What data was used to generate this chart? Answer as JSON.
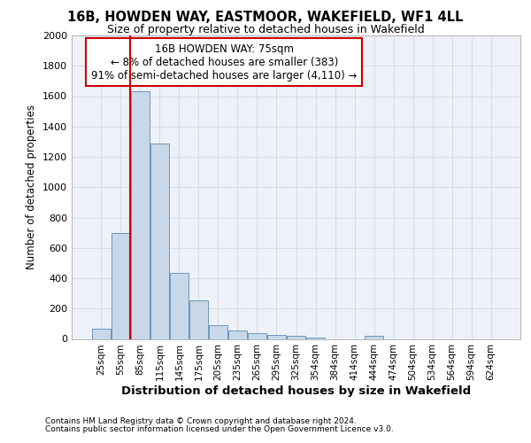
{
  "title_line1": "16B, HOWDEN WAY, EASTMOOR, WAKEFIELD, WF1 4LL",
  "title_line2": "Size of property relative to detached houses in Wakefield",
  "xlabel": "Distribution of detached houses by size in Wakefield",
  "ylabel": "Number of detached properties",
  "footer_line1": "Contains HM Land Registry data © Crown copyright and database right 2024.",
  "footer_line2": "Contains public sector information licensed under the Open Government Licence v3.0.",
  "categories": [
    "25sqm",
    "55sqm",
    "85sqm",
    "115sqm",
    "145sqm",
    "175sqm",
    "205sqm",
    "235sqm",
    "265sqm",
    "295sqm",
    "325sqm",
    "354sqm",
    "384sqm",
    "414sqm",
    "444sqm",
    "474sqm",
    "504sqm",
    "534sqm",
    "564sqm",
    "594sqm",
    "624sqm"
  ],
  "values": [
    65,
    695,
    1630,
    1285,
    435,
    255,
    90,
    55,
    40,
    25,
    18,
    10,
    0,
    0,
    18,
    0,
    0,
    0,
    0,
    0,
    0
  ],
  "bar_color": "#c8d8e8",
  "bar_edge_color": "#5a8ab5",
  "ylim": [
    0,
    2000
  ],
  "yticks": [
    0,
    200,
    400,
    600,
    800,
    1000,
    1200,
    1400,
    1600,
    1800,
    2000
  ],
  "annotation_text_line1": "16B HOWDEN WAY: 75sqm",
  "annotation_text_line2": "← 8% of detached houses are smaller (383)",
  "annotation_text_line3": "91% of semi-detached houses are larger (4,110) →",
  "annotation_box_color": "#ffffff",
  "annotation_border_color": "#cc0000",
  "grid_color": "#d4dde8",
  "vline_color": "#cc0000",
  "vline_x": 1.5,
  "bg_color": "#eef2f8"
}
